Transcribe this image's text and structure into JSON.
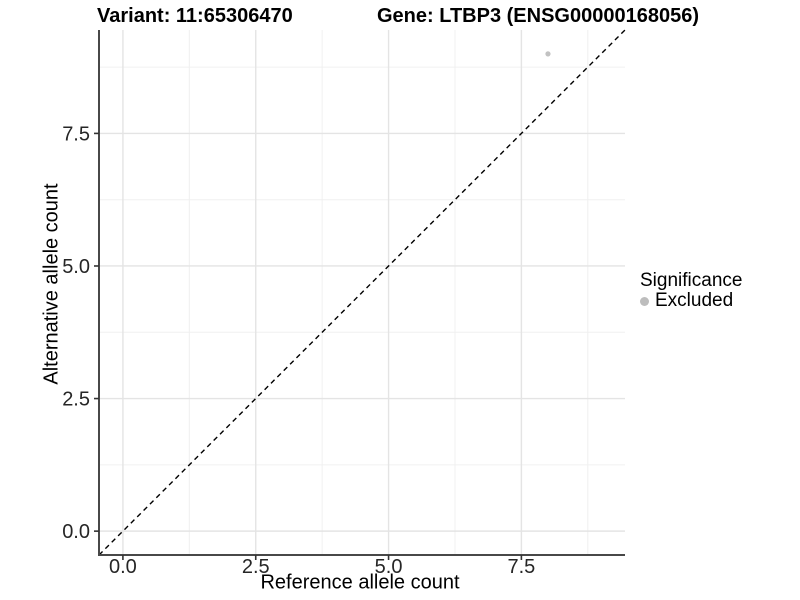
{
  "titles": {
    "variant": "Variant: 11:65306470",
    "gene": "Gene: LTBP3 (ENSG00000168056)"
  },
  "axes": {
    "x_label": "Reference allele count",
    "y_label": "Alternative allele count"
  },
  "legend": {
    "title": "Significance",
    "items": [
      {
        "label": "Excluded",
        "color": "#bdbdbd"
      }
    ]
  },
  "chart_data": {
    "type": "scatter",
    "title": "Variant: 11:65306470 — Gene: LTBP3 (ENSG00000168056)",
    "xlabel": "Reference allele count",
    "ylabel": "Alternative allele count",
    "xlim": [
      -0.45,
      9.45
    ],
    "ylim": [
      -0.45,
      9.45
    ],
    "x_ticks": [
      0.0,
      2.5,
      5.0,
      7.5
    ],
    "y_ticks": [
      0.0,
      2.5,
      5.0,
      7.5
    ],
    "x_minor_ticks": [
      1.25,
      3.75,
      6.25,
      8.75
    ],
    "y_minor_ticks": [
      1.25,
      3.75,
      6.25,
      8.75
    ],
    "tick_decimals": 1,
    "grid": true,
    "legend_position": "right",
    "series": [
      {
        "name": "Excluded",
        "color": "#c2c2c2",
        "points": [
          [
            8,
            9
          ]
        ]
      }
    ],
    "reference_line": {
      "slope": 1,
      "intercept": 0,
      "style": "dashed",
      "color": "#000000"
    },
    "style": {
      "major_grid_color": "#e4e4e4",
      "minor_grid_color": "#f0f0f0",
      "axis_line_color": "#484848",
      "tick_color": "#333333",
      "tick_label_color": "#262626",
      "point_radius": 2.6
    }
  }
}
